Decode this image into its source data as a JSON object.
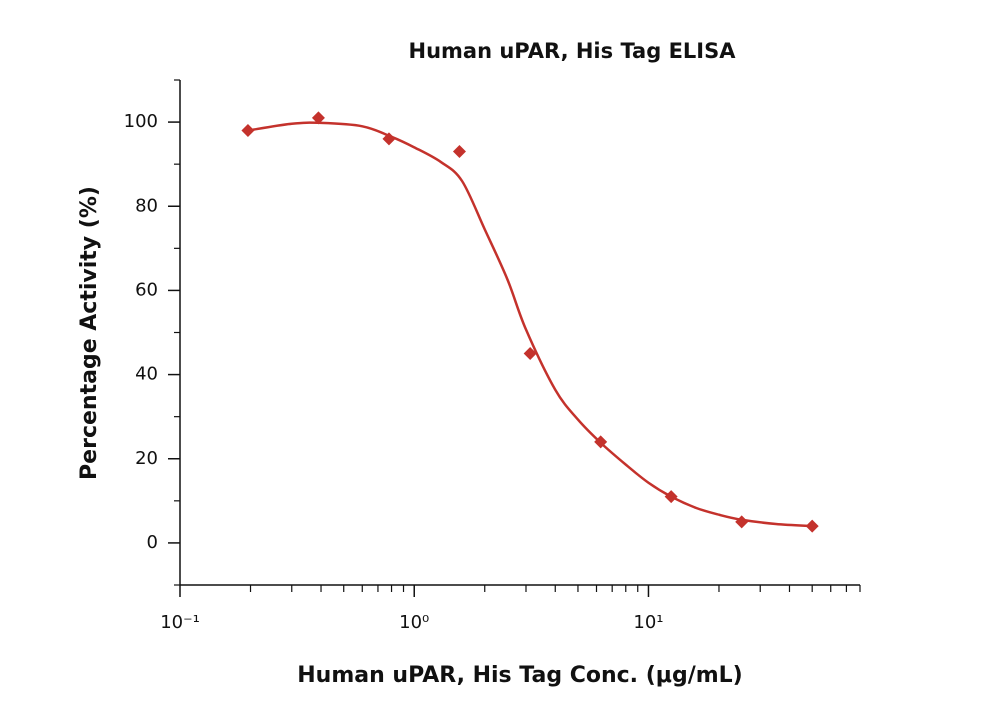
{
  "chart_data": {
    "type": "scatter",
    "title": "Human uPAR, His Tag ELISA",
    "x_label": "Human uPAR, His Tag Conc. (μg/mL)",
    "y_label": "Percentage Activity (%)",
    "xscale": "log",
    "xlim": [
      0.1,
      80
    ],
    "xticks": [
      {
        "value": 0.1,
        "label": "10⁻¹"
      },
      {
        "value": 1,
        "label": "10⁰"
      },
      {
        "value": 10,
        "label": "10¹"
      }
    ],
    "xminorticks": [
      0.2,
      0.3,
      0.4,
      0.5,
      0.6,
      0.7,
      0.8,
      0.9,
      2,
      3,
      4,
      5,
      6,
      7,
      8,
      9,
      20,
      30,
      40,
      50,
      60,
      70,
      80
    ],
    "ylim": [
      -10,
      110
    ],
    "yticks": [
      0,
      20,
      40,
      60,
      80,
      100
    ],
    "yminorticks": [
      -10,
      10,
      30,
      50,
      70,
      90,
      110
    ],
    "series": [
      {
        "type": "scatter",
        "color": "#c4322c",
        "x": [
          0.195,
          0.39,
          0.78,
          1.56,
          3.125,
          6.25,
          12.5,
          25,
          50
        ],
        "values": [
          98,
          101,
          96,
          93,
          45,
          24,
          11,
          5,
          4
        ]
      },
      {
        "type": "line",
        "color": "#c4322c",
        "x": [
          0.195,
          0.3,
          0.4,
          0.6,
          0.8,
          1.0,
          1.3,
          1.6,
          2.0,
          2.5,
          3.0,
          4.0,
          5.0,
          6.25,
          8,
          10,
          12.5,
          16,
          20,
          25,
          35,
          50
        ],
        "values": [
          98,
          99.6,
          99.8,
          99,
          96.5,
          94,
          90.5,
          86,
          74.5,
          62.6,
          50.7,
          36.4,
          29.3,
          23.8,
          18.6,
          14.3,
          11,
          8.3,
          6.7,
          5.5,
          4.5,
          4
        ]
      }
    ]
  }
}
